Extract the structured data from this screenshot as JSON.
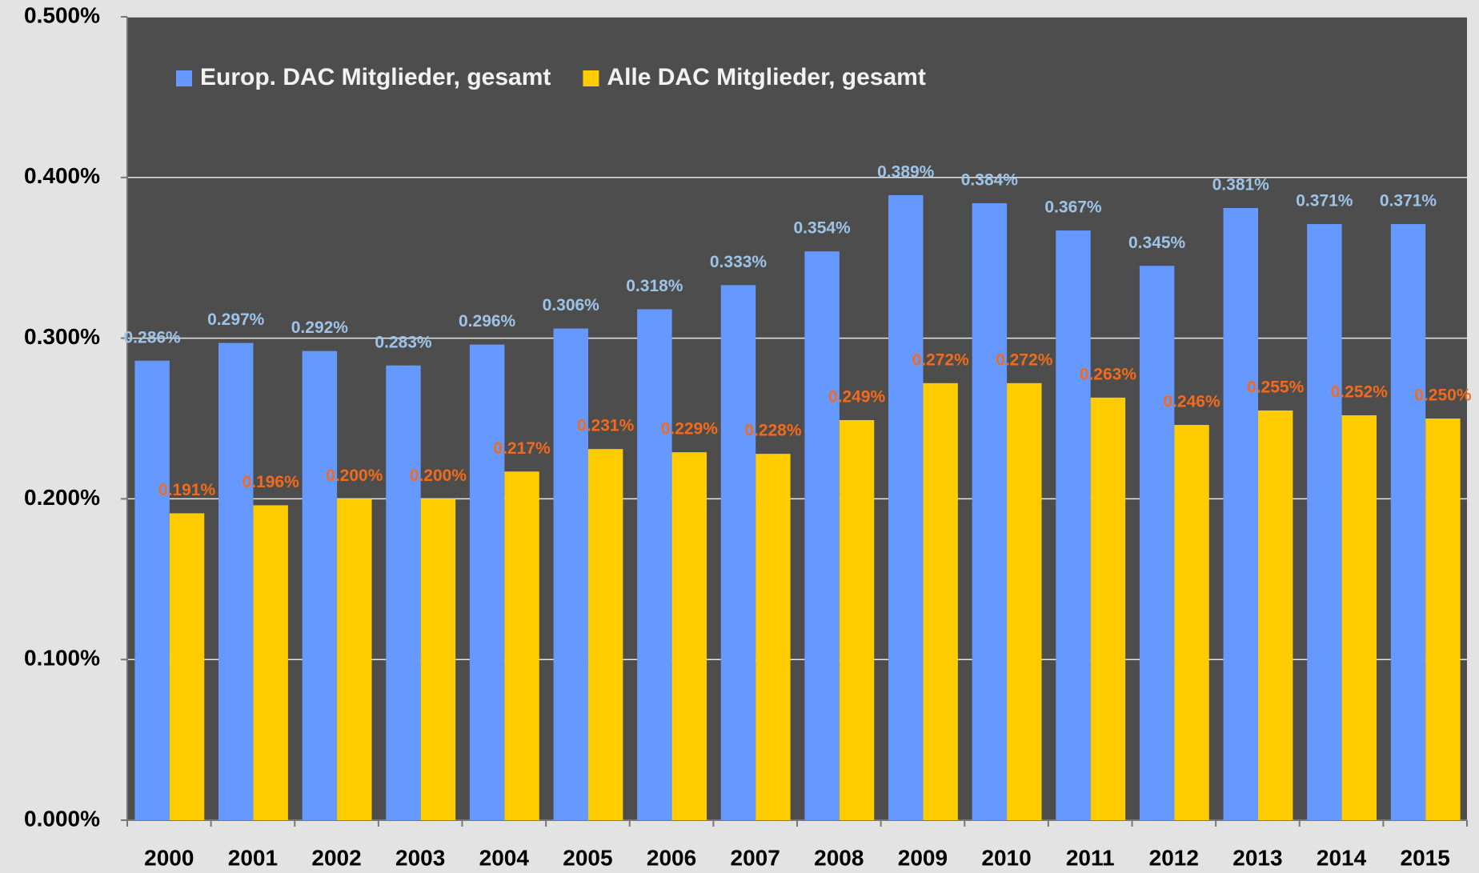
{
  "chart_data": {
    "type": "bar",
    "categories": [
      "2000",
      "2001",
      "2002",
      "2003",
      "2004",
      "2005",
      "2006",
      "2007",
      "2008",
      "2009",
      "2010",
      "2011",
      "2012",
      "2013",
      "2014",
      "2015"
    ],
    "series": [
      {
        "name": "Europ. DAC Mitglieder, gesamt",
        "color": "#6699ff",
        "label_color": "#9dc3e6",
        "values": [
          0.286,
          0.297,
          0.292,
          0.283,
          0.296,
          0.306,
          0.318,
          0.333,
          0.354,
          0.389,
          0.384,
          0.367,
          0.345,
          0.381,
          0.371,
          0.371
        ],
        "value_labels": [
          "0.286%",
          "0.297%",
          "0.292%",
          "0.283%",
          "0.296%",
          "0.306%",
          "0.318%",
          "0.333%",
          "0.354%",
          "0.389%",
          "0.384%",
          "0.367%",
          "0.345%",
          "0.381%",
          "0.371%",
          "0.371%"
        ]
      },
      {
        "name": "Alle DAC Mitglieder, gesamt",
        "color": "#ffcc00",
        "label_color": "#f26b1d",
        "values": [
          0.191,
          0.196,
          0.2,
          0.2,
          0.217,
          0.231,
          0.229,
          0.228,
          0.249,
          0.272,
          0.272,
          0.263,
          0.246,
          0.255,
          0.252,
          0.25
        ],
        "value_labels": [
          "0.191%",
          "0.196%",
          "0.200%",
          "0.200%",
          "0.217%",
          "0.231%",
          "0.229%",
          "0.228%",
          "0.249%",
          "0.272%",
          "0.272%",
          "0.263%",
          "0.246%",
          "0.255%",
          "0.252%",
          "0.250%"
        ]
      }
    ],
    "ylim": [
      0,
      0.5
    ],
    "yticks": [
      {
        "value": 0,
        "label": "0.000%"
      },
      {
        "value": 0.1,
        "label": "0.100%"
      },
      {
        "value": 0.2,
        "label": "0.200%"
      },
      {
        "value": 0.3,
        "label": "0.300%"
      },
      {
        "value": 0.4,
        "label": "0.400%"
      },
      {
        "value": 0.5,
        "label": "0.500%"
      }
    ],
    "grid": true,
    "legend": "top-left"
  }
}
